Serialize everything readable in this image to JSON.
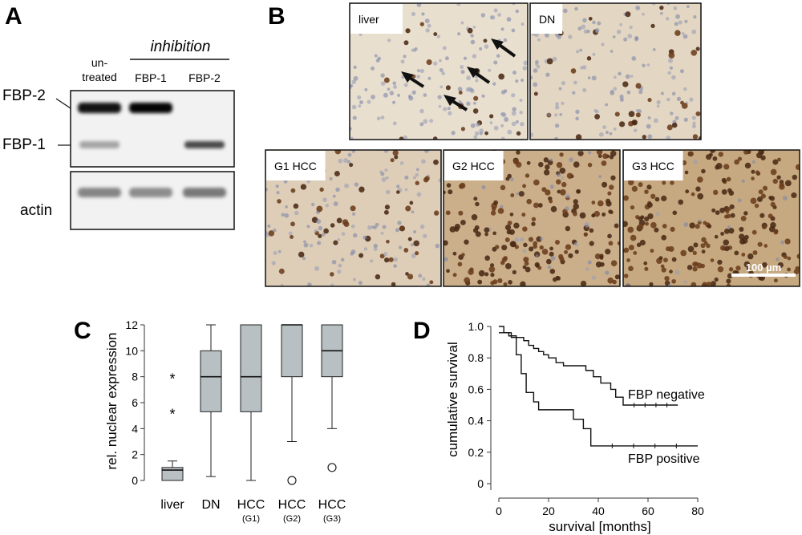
{
  "panels": {
    "a": {
      "letter": "A",
      "header": "inhibition",
      "lanes": [
        "un-",
        "treated",
        "FBP-1",
        "FBP-2"
      ],
      "bands": [
        "FBP-2",
        "FBP-1"
      ],
      "loading": "actin",
      "band_intensity": {
        "fbp2": [
          0.92,
          0.98,
          0.0
        ],
        "fbp1": [
          0.32,
          0.0,
          0.7
        ],
        "actin": [
          0.45,
          0.42,
          0.5
        ]
      }
    },
    "b": {
      "letter": "B",
      "images": [
        {
          "label": "liver",
          "stain": 0.08
        },
        {
          "label": "DN",
          "stain": 0.22
        },
        {
          "label": "G1 HCC",
          "stain": 0.35
        },
        {
          "label": "G2 HCC",
          "stain": 0.85
        },
        {
          "label": "G3 HCC",
          "stain": 0.95
        }
      ],
      "scale_bar": "100 µm"
    }
  },
  "chart_data": [
    {
      "panel": "C",
      "type": "box",
      "ylabel": "rel. nuclear expression",
      "ylim": [
        0,
        12
      ],
      "yticks": [
        0,
        2,
        4,
        6,
        8,
        10,
        12
      ],
      "categories": [
        {
          "name": "liver",
          "sub": ""
        },
        {
          "name": "DN",
          "sub": ""
        },
        {
          "name": "HCC",
          "sub": "(G1)"
        },
        {
          "name": "HCC",
          "sub": "(G2)"
        },
        {
          "name": "HCC",
          "sub": "(G3)"
        }
      ],
      "boxes": [
        {
          "min": 0,
          "q1": 0,
          "median": 0.8,
          "q3": 1,
          "max": 1.5,
          "stars": [
            8,
            5.3
          ],
          "circles": []
        },
        {
          "min": 0.3,
          "q1": 5.3,
          "median": 8,
          "q3": 10,
          "max": 12,
          "stars": [],
          "circles": []
        },
        {
          "min": 0,
          "q1": 5.3,
          "median": 8,
          "q3": 12,
          "max": 12,
          "stars": [],
          "circles": []
        },
        {
          "min": 3,
          "q1": 8,
          "median": 12,
          "q3": 12,
          "max": 12,
          "stars": [],
          "circles": [
            0
          ]
        },
        {
          "min": 4,
          "q1": 8,
          "median": 10,
          "q3": 12,
          "max": 12,
          "stars": [],
          "circles": [
            1
          ]
        }
      ],
      "star_symbol": "*"
    },
    {
      "panel": "D",
      "type": "line",
      "xlabel": "survival [months]",
      "ylabel": "cumulative survival",
      "xlim": [
        0,
        80
      ],
      "ylim": [
        0,
        1
      ],
      "xticks": [
        0,
        20,
        40,
        60,
        80
      ],
      "yticks": [
        0,
        0.2,
        0.4,
        0.6,
        0.8,
        1.0
      ],
      "ytick_labels": [
        "0",
        "0.2",
        "0.4",
        "0.6",
        "0.8",
        "1.0"
      ],
      "series": [
        {
          "name": "FBP negative",
          "points": [
            [
              0,
              1.0
            ],
            [
              2,
              0.96
            ],
            [
              5,
              0.93
            ],
            [
              10,
              0.91
            ],
            [
              12,
              0.88
            ],
            [
              14,
              0.86
            ],
            [
              16,
              0.84
            ],
            [
              18,
              0.82
            ],
            [
              20,
              0.8
            ],
            [
              23,
              0.77
            ],
            [
              26,
              0.75
            ],
            [
              35,
              0.72
            ],
            [
              38,
              0.68
            ],
            [
              41,
              0.64
            ],
            [
              45,
              0.6
            ],
            [
              47,
              0.55
            ],
            [
              50,
              0.5
            ],
            [
              72,
              0.5
            ]
          ]
        },
        {
          "name": "FBP positive",
          "points": [
            [
              0,
              0.96
            ],
            [
              4,
              0.94
            ],
            [
              7,
              0.82
            ],
            [
              9,
              0.7
            ],
            [
              11,
              0.58
            ],
            [
              14,
              0.52
            ],
            [
              16,
              0.47
            ],
            [
              30,
              0.41
            ],
            [
              34,
              0.35
            ],
            [
              37,
              0.24
            ],
            [
              80,
              0.24
            ]
          ]
        }
      ]
    }
  ]
}
